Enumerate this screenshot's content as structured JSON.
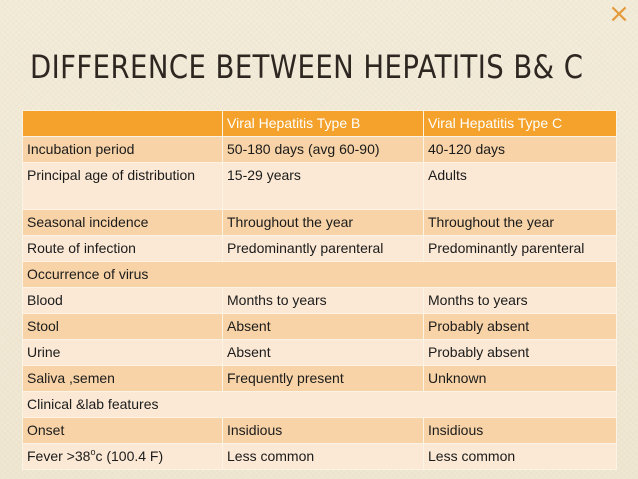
{
  "slide": {
    "title": "DIFFERENCE BETWEEN HEPATITIS B& C",
    "corner_mark": "×"
  },
  "table": {
    "headers": [
      "",
      "Viral Hepatitis Type B",
      "Viral Hepatitis Type C"
    ],
    "rows": [
      [
        "Incubation period",
        "50-180 days (avg 60-90)",
        "40-120 days"
      ],
      [
        "Principal age of distribution",
        "15-29 years",
        "Adults"
      ],
      [
        "Seasonal incidence",
        "Throughout the year",
        "Throughout the year"
      ],
      [
        "Route of infection",
        "Predominantly parenteral",
        "Predominantly parenteral"
      ],
      [
        "Occurrence of virus"
      ],
      [
        "Blood",
        "Months to years",
        "Months to years"
      ],
      [
        "Stool",
        "Absent",
        "Probably absent"
      ],
      [
        "Urine",
        "Absent",
        "Probably absent"
      ],
      [
        "Saliva ,semen",
        "Frequently present",
        "Unknown"
      ],
      [
        "Clinical &lab features"
      ],
      [
        "Onset",
        "Insidious",
        "Insidious"
      ]
    ],
    "fever_row": {
      "label_pre": "Fever >38",
      "label_sup": "o",
      "label_post": "c (100.4 F)",
      "type_b": "Less common",
      "type_c": "Less common"
    }
  },
  "colors": {
    "header": "#f4a22b",
    "row_dark": "#f7d3a7",
    "row_light": "#fbe9d5",
    "accent": "#e49a3a"
  }
}
